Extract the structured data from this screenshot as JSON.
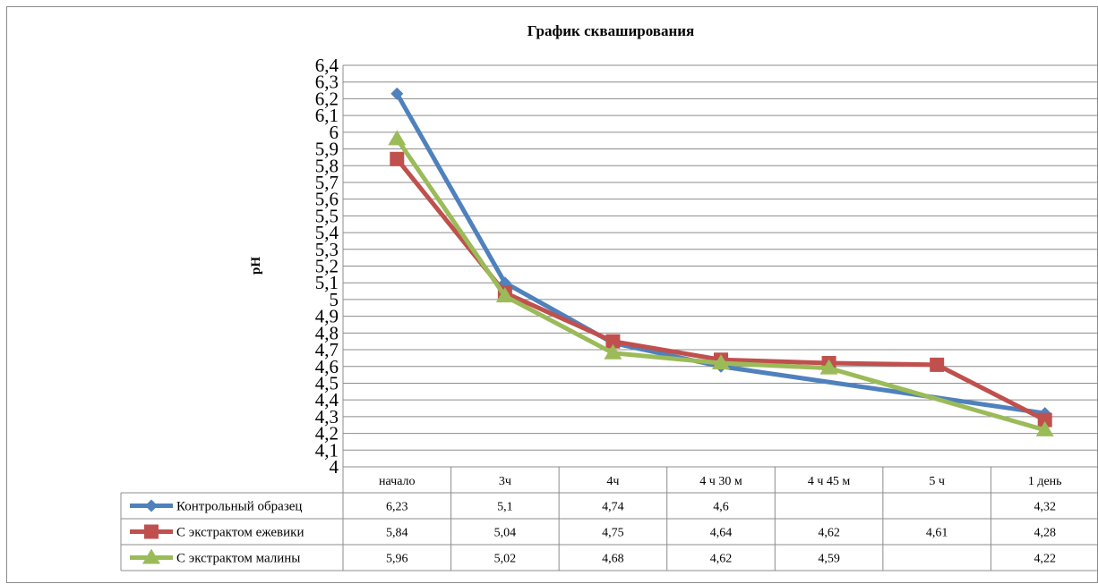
{
  "chart_data": {
    "type": "line",
    "title": "График скваширования",
    "xlabel": "",
    "ylabel": "pH",
    "ylim": [
      4,
      6.4
    ],
    "ytick_step": 0.1,
    "yticks": [
      "6,4",
      "6,3",
      "6,2",
      "6,1",
      "6",
      "5,9",
      "5,8",
      "5,7",
      "5,6",
      "5,5",
      "5,4",
      "5,3",
      "5,2",
      "5,1",
      "5",
      "4,9",
      "4,8",
      "4,7",
      "4,6",
      "4,5",
      "4,4",
      "4,3",
      "4,2",
      "4,1",
      "4"
    ],
    "grid": true,
    "categories": [
      "начало",
      "3ч",
      "4ч",
      "4 ч 30 м",
      "4 ч  45 м",
      "5 ч",
      "1 день"
    ],
    "data_table": true,
    "series": [
      {
        "name": "Контрольный образец",
        "color": "#4f81bd",
        "marker": "diamond",
        "values": [
          6.23,
          5.1,
          4.74,
          4.6,
          null,
          null,
          4.32
        ],
        "labels": [
          "6,23",
          "5,1",
          "4,74",
          "4,6",
          "",
          "",
          "4,32"
        ]
      },
      {
        "name": "С экстрактом ежевики",
        "color": "#c0504d",
        "marker": "square",
        "values": [
          5.84,
          5.04,
          4.75,
          4.64,
          4.62,
          4.61,
          4.28
        ],
        "labels": [
          "5,84",
          "5,04",
          "4,75",
          "4,64",
          "4,62",
          "4,61",
          "4,28"
        ]
      },
      {
        "name": "С экстрактом малины",
        "color": "#9bbb59",
        "marker": "triangle",
        "values": [
          5.96,
          5.02,
          4.68,
          4.62,
          4.59,
          null,
          4.22
        ],
        "labels": [
          "5,96",
          "5,02",
          "4,68",
          "4,62",
          "4,59",
          "",
          "4,22"
        ]
      }
    ]
  }
}
